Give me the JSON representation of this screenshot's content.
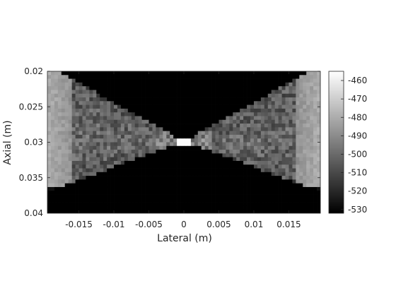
{
  "chart_data": {
    "type": "heatmap",
    "title": "",
    "xlabel": "Lateral (m)",
    "ylabel": "Axial (m)",
    "xlim": [
      -0.0195,
      0.0195
    ],
    "ylim": [
      0.02,
      0.04
    ],
    "y_reversed": true,
    "xticks": [
      -0.015,
      -0.01,
      -0.005,
      0,
      0.005,
      0.01,
      0.015
    ],
    "xtick_labels": [
      "-0.015",
      "-0.01",
      "-0.005",
      "0",
      "0.005",
      "0.01",
      "0.015"
    ],
    "yticks": [
      0.02,
      0.025,
      0.03,
      0.035,
      0.04
    ],
    "ytick_labels": [
      "0.02",
      "0.025",
      "0.03",
      "0.035",
      "0.04"
    ],
    "colormap": "gray",
    "colorbar": {
      "range": [
        -532,
        -455
      ],
      "ticks": [
        -460,
        -470,
        -480,
        -490,
        -500,
        -510,
        -520,
        -530
      ],
      "tick_labels": [
        "-460",
        "-470",
        "-480",
        "-490",
        "-500",
        "-510",
        "-520",
        "-530"
      ]
    },
    "grid": false,
    "pattern": {
      "focus_x": 0,
      "focus_y": 0.0299,
      "focus_value": -456,
      "background_value": -532,
      "cone_value": -500,
      "edge_value": -488,
      "columns": 78,
      "rows": 38
    }
  }
}
